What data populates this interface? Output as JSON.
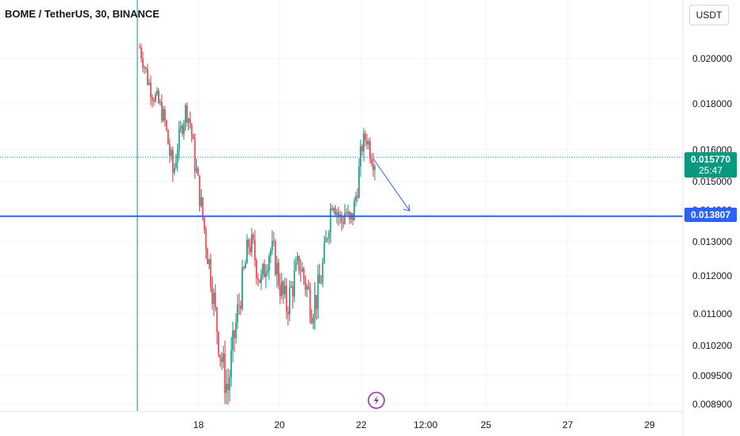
{
  "title": "BOME / TetherUS, 30, BINANCE",
  "currency": "USDT",
  "colors": {
    "up": "#089981",
    "down": "#f23645",
    "level": "#2962ff",
    "arrow": "#2962ff",
    "lightning": "#9c27b0"
  },
  "icons": {
    "lightning": "lightning-icon"
  },
  "badges": {
    "last_price": "0.015770",
    "countdown": "25:47",
    "level": "0.013807"
  },
  "chart_data": {
    "type": "candlestick",
    "title": "BOME / TetherUS, 30, BINANCE",
    "y_ticks": [
      "0.020000",
      "0.018000",
      "0.016000",
      "0.015000",
      "0.014000",
      "0.013000",
      "0.012000",
      "0.011000",
      "0.010200",
      "0.009500",
      "0.008900"
    ],
    "x_ticks": [
      "18",
      "20",
      "22",
      "12:00",
      "25",
      "27",
      "29"
    ],
    "last_price": 0.01577,
    "horizontal_level": 0.013807,
    "grid": true,
    "annotations": [
      "arrow from ~0.0160 at 22 pointing down-right to ~0.0138"
    ],
    "price_path": [
      0.0205,
      0.0198,
      0.019,
      0.0185,
      0.0182,
      0.0178,
      0.0172,
      0.016,
      0.0152,
      0.0162,
      0.017,
      0.0178,
      0.0172,
      0.0158,
      0.0148,
      0.0138,
      0.0128,
      0.012,
      0.011,
      0.0102,
      0.0096,
      0.0092,
      0.01,
      0.0108,
      0.0115,
      0.0122,
      0.013,
      0.0128,
      0.0122,
      0.0118,
      0.0124,
      0.0128,
      0.0126,
      0.012,
      0.0115,
      0.0112,
      0.0116,
      0.012,
      0.0124,
      0.012,
      0.0116,
      0.0112,
      0.0114,
      0.0118,
      0.0126,
      0.0136,
      0.0145,
      0.014,
      0.0136,
      0.014,
      0.0135,
      0.014,
      0.015,
      0.0162,
      0.0166,
      0.016,
      0.0157
    ]
  }
}
